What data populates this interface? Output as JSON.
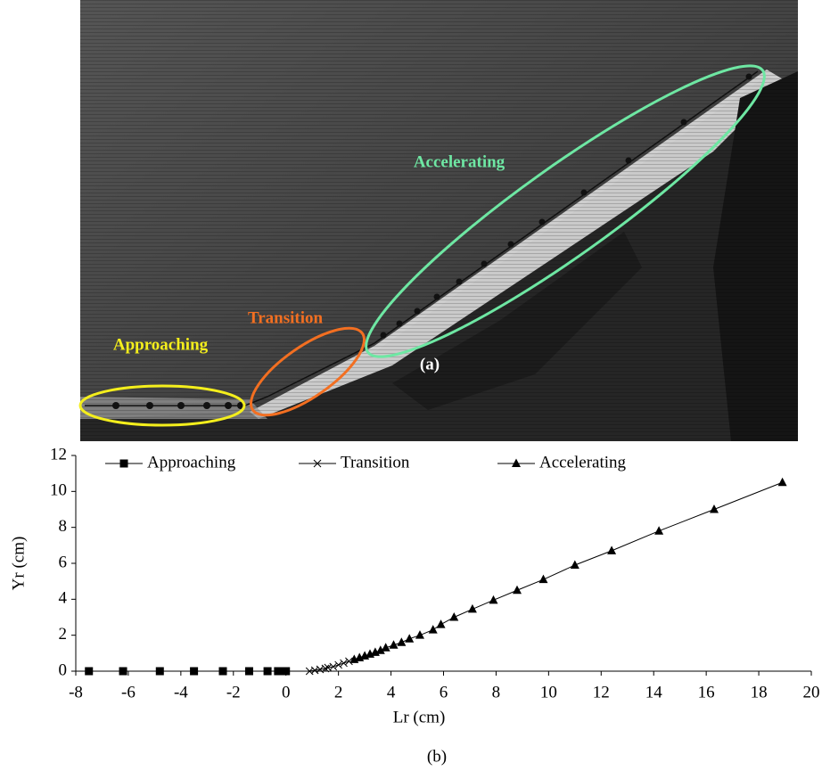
{
  "image": {
    "labels": {
      "accelerating": "Accelerating",
      "transition": "Transition",
      "approaching": "Approaching"
    },
    "panel_label": "(a)"
  },
  "chart_data": {
    "type": "line",
    "panel_label": "(b)",
    "xlabel": "Lr (cm)",
    "ylabel": "Yr (cm)",
    "xlim": [
      -8,
      20
    ],
    "xticks": [
      -8,
      -6,
      -4,
      -2,
      0,
      2,
      4,
      6,
      8,
      10,
      12,
      14,
      16,
      18,
      20
    ],
    "ylim": [
      0,
      12
    ],
    "yticks": [
      0,
      2,
      4,
      6,
      8,
      10,
      12
    ],
    "grid": false,
    "legend": "top",
    "series": [
      {
        "name": "Approaching",
        "color": "#000000",
        "marker": "square",
        "x": [
          -7.5,
          -6.2,
          -4.8,
          -3.5,
          -2.4,
          -1.4,
          -0.7,
          -0.3,
          -0.1,
          0
        ],
        "values": [
          0,
          0,
          0,
          0,
          0,
          0,
          0,
          0,
          0,
          0
        ]
      },
      {
        "name": "Transition",
        "color": "#000000",
        "marker": "cross",
        "x": [
          0.9,
          1.1,
          1.3,
          1.5,
          1.6,
          1.8,
          2.0,
          2.2,
          2.4
        ],
        "values": [
          0,
          0.05,
          0.1,
          0.15,
          0.2,
          0.25,
          0.35,
          0.45,
          0.55
        ]
      },
      {
        "name": "Accelerating",
        "color": "#000000",
        "marker": "triangle",
        "x": [
          2.6,
          2.8,
          3.0,
          3.2,
          3.4,
          3.6,
          3.8,
          4.1,
          4.4,
          4.7,
          5.1,
          5.6,
          5.9,
          6.4,
          7.1,
          7.9,
          8.8,
          9.8,
          11.0,
          12.4,
          14.2,
          16.3,
          18.9
        ],
        "values": [
          0.65,
          0.75,
          0.85,
          0.95,
          1.05,
          1.15,
          1.3,
          1.45,
          1.6,
          1.8,
          2.0,
          2.3,
          2.6,
          3.0,
          3.45,
          3.95,
          4.5,
          5.1,
          5.9,
          6.7,
          7.8,
          9.0,
          10.5
        ]
      }
    ]
  }
}
